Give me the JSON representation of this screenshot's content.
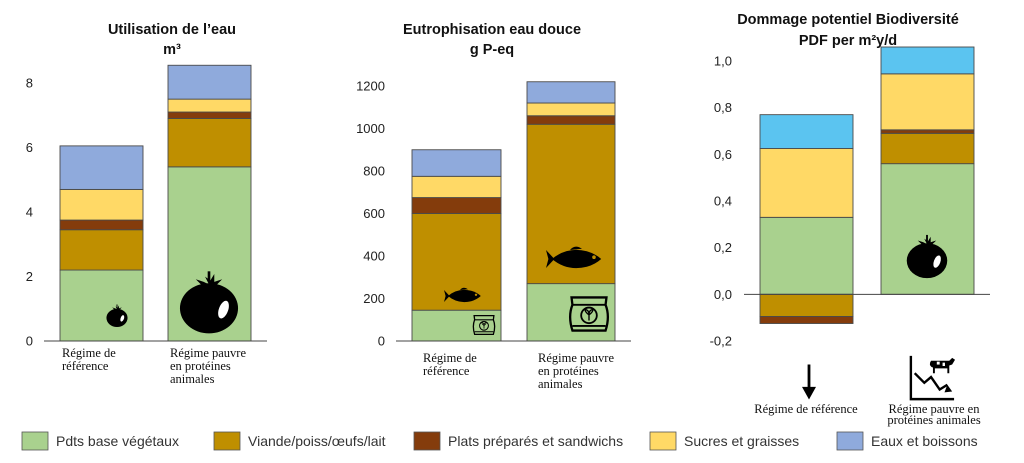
{
  "colors": {
    "Pdts base végétaux": "#a9d18e",
    "Viande/poiss/œufs/lait": "#bf8f00",
    "Plats préparés et sandwichs": "#843c0c",
    "Sucres et graisses": "#ffd966",
    "Eaux et boissons": "#8faadc",
    "Eaux et boissons (biodiversité)": "#5bc4f0"
  },
  "icons": [
    "tomato-icon",
    "fish-icon",
    "feed-sack-icon",
    "down-arrow-icon",
    "cow-decline-icon"
  ],
  "legend": [
    {
      "label": "Pdts base végétaux",
      "color": "#a9d18e"
    },
    {
      "label": "Viande/poiss/œufs/lait",
      "color": "#bf8f00"
    },
    {
      "label": "Plats préparés et sandwichs",
      "color": "#843c0c"
    },
    {
      "label": "Sucres et graisses",
      "color": "#ffd966"
    },
    {
      "label": "Eaux et boissons",
      "color": "#8faadc"
    }
  ],
  "chart_data": [
    {
      "type": "bar",
      "stacked": true,
      "title": "Utilisation de l’eau",
      "subtitle": "m³",
      "categories": [
        "Régime de référence",
        "Régime pauvre en protéines animales"
      ],
      "category_lines": [
        [
          "Régime de",
          "référence"
        ],
        [
          "Régime pauvre",
          "en protéines",
          "animales"
        ]
      ],
      "ylim": [
        0,
        8.6
      ],
      "yticks": [
        0,
        2,
        4,
        6,
        8
      ],
      "ytick_labels": [
        "0",
        "2",
        "4",
        "6",
        "8"
      ],
      "series": [
        {
          "name": "Pdts base végétaux",
          "values": [
            2.2,
            5.4
          ]
        },
        {
          "name": "Viande/poiss/œufs/lait",
          "values": [
            1.25,
            1.5
          ]
        },
        {
          "name": "Plats préparés et sandwichs",
          "values": [
            0.3,
            0.2
          ]
        },
        {
          "name": "Sucres et graisses",
          "values": [
            0.95,
            0.4
          ]
        },
        {
          "name": "Eaux et boissons",
          "values": [
            1.35,
            1.05
          ]
        }
      ]
    },
    {
      "type": "bar",
      "stacked": true,
      "title": "Eutrophisation eau douce",
      "subtitle": "g P-eq",
      "categories": [
        "Régime de référence",
        "Régime pauvre en protéines animales"
      ],
      "category_lines": [
        [
          "Régime de",
          "référence"
        ],
        [
          "Régime pauvre",
          "en protéines",
          "animales"
        ]
      ],
      "ylim": [
        0,
        1260
      ],
      "yticks": [
        0,
        200,
        400,
        600,
        800,
        1000,
        1200
      ],
      "ytick_labels": [
        "0",
        "200",
        "400",
        "600",
        "800",
        "1000",
        "1200"
      ],
      "series": [
        {
          "name": "Pdts base végétaux",
          "values": [
            145,
            270
          ]
        },
        {
          "name": "Viande/poiss/œufs/lait",
          "values": [
            455,
            750
          ]
        },
        {
          "name": "Plats préparés et sandwichs",
          "values": [
            75,
            40
          ]
        },
        {
          "name": "Sucres et graisses",
          "values": [
            100,
            60
          ]
        },
        {
          "name": "Eaux et boissons",
          "values": [
            125,
            100
          ]
        }
      ]
    },
    {
      "type": "bar",
      "stacked": true,
      "title": "Dommage potentiel Biodiversité",
      "subtitle": "PDF per m²y/d",
      "categories": [
        "Régime de référence",
        "Régime pauvre en protéines animales"
      ],
      "category_lines": [
        [
          "Régime de référence"
        ],
        [
          "Régime pauvre en",
          "protéines animales"
        ]
      ],
      "ylim": [
        -0.24,
        1.05
      ],
      "yticks": [
        -0.2,
        0.0,
        0.2,
        0.4,
        0.6,
        0.8,
        1.0
      ],
      "ytick_labels": [
        "-0,2",
        "0,0",
        "0,2",
        "0,4",
        "0,6",
        "0,8",
        "1,0"
      ],
      "series": [
        {
          "name": "Pdts base végétaux",
          "values": [
            0.33,
            0.56
          ]
        },
        {
          "name": "Viande/poiss/œufs/lait",
          "values": [
            -0.095,
            0.13
          ]
        },
        {
          "name": "Plats préparés et sandwichs",
          "values": [
            -0.03,
            0.015
          ]
        },
        {
          "name": "Sucres et graisses",
          "values": [
            0.295,
            0.24
          ]
        },
        {
          "name": "Eaux et boissons",
          "values": [
            0.145,
            0.115
          ]
        }
      ]
    }
  ]
}
